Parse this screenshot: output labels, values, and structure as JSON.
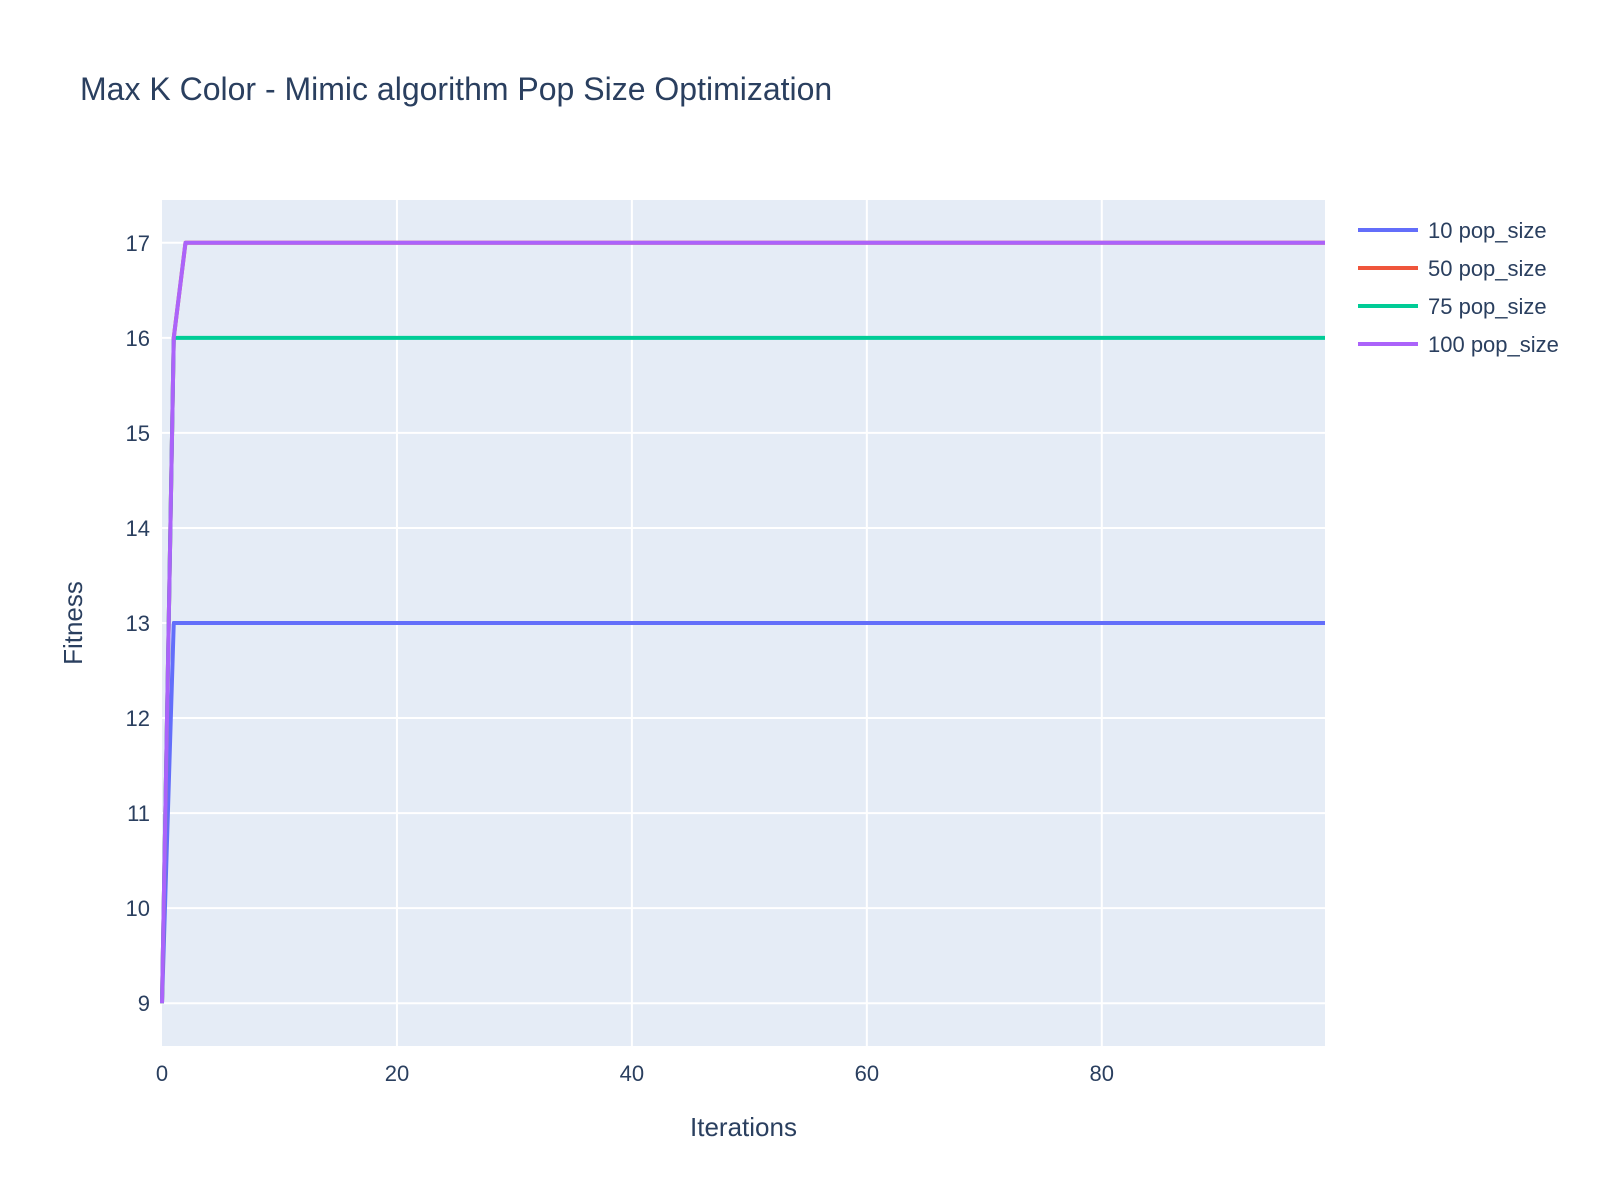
{
  "chart_data": {
    "type": "line",
    "title": "Max K Color - Mimic algorithm Pop Size Optimization",
    "xlabel": "Iterations",
    "ylabel": "Fitness",
    "xlim": [
      0,
      99
    ],
    "ylim": [
      8.55,
      17.45
    ],
    "x_ticks": [
      0,
      20,
      40,
      60,
      80
    ],
    "y_ticks": [
      9,
      10,
      11,
      12,
      13,
      14,
      15,
      16,
      17
    ],
    "grid": true,
    "legend_position": "top-right",
    "background_color": "#E5ECF6",
    "grid_color": "#FFFFFF",
    "series": [
      {
        "name": "10 pop_size",
        "color": "#636EFA",
        "x": [
          0,
          1,
          99
        ],
        "y": [
          9,
          13,
          13
        ]
      },
      {
        "name": "50 pop_size",
        "color": "#EF553B",
        "x": [
          0,
          1,
          2,
          99
        ],
        "y": [
          9,
          16,
          17,
          17
        ]
      },
      {
        "name": "75 pop_size",
        "color": "#00CC96",
        "x": [
          0,
          1,
          99
        ],
        "y": [
          9,
          16,
          16
        ]
      },
      {
        "name": "100 pop_size",
        "color": "#AB63FA",
        "x": [
          0,
          1,
          2,
          99
        ],
        "y": [
          9,
          16,
          17,
          17
        ]
      }
    ]
  }
}
